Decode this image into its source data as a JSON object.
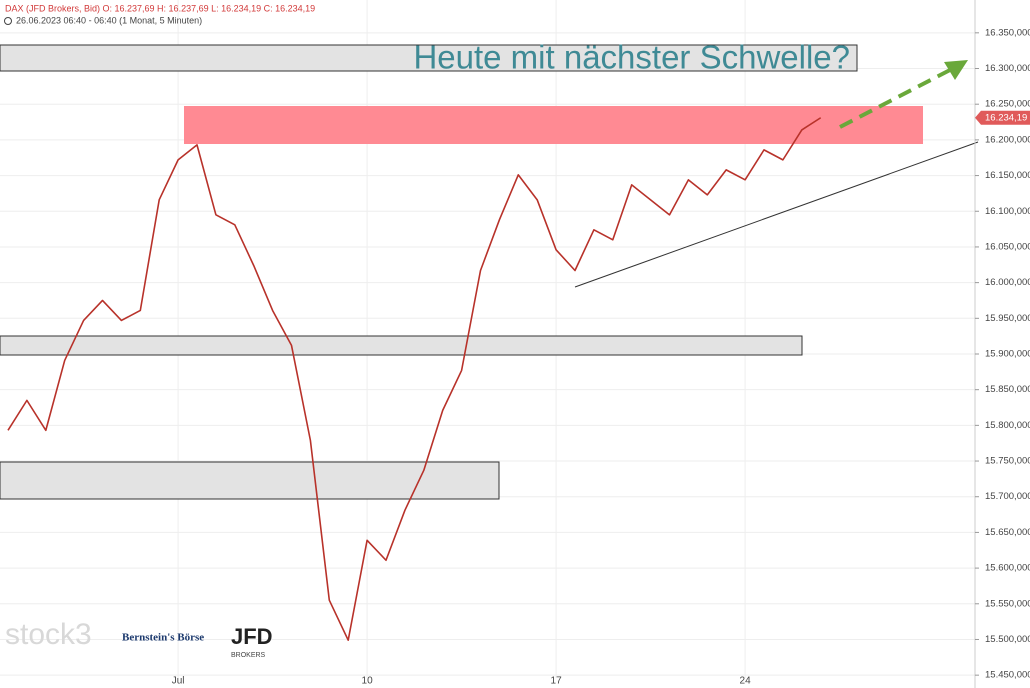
{
  "chart_data": {
    "type": "line",
    "title": "DAX (JFD Brokers, Bid)  O: 16.237,69  H: 16.237,69  L: 16.234,19  C: 16.234,19",
    "subtitle": "26.06.2023 06:40 - 06:40   (1 Monat, 5 Minuten)",
    "annotation": "Heute mit nächster Schwelle?",
    "last_price_label": "16.234,19",
    "logos": [
      "stock3",
      "Bernstein's Börse",
      "JFD",
      "BROKERS"
    ],
    "categories": [
      null,
      null,
      null,
      null,
      null,
      null,
      null,
      null,
      null,
      "Jul",
      null,
      null,
      null,
      null,
      null,
      null,
      null,
      null,
      null,
      "10",
      null,
      null,
      null,
      null,
      null,
      null,
      null,
      null,
      null,
      "17",
      null,
      null,
      null,
      null,
      null,
      null,
      null,
      null,
      null,
      "24",
      null,
      null,
      null,
      null
    ],
    "series": [
      {
        "name": "DAX",
        "color": "#b8322a",
        "values": [
          15793,
          15835,
          15793,
          15891,
          15947,
          15975,
          15947,
          15961,
          16116,
          16172,
          16193,
          16095,
          16081,
          16024,
          15961,
          15912,
          15779,
          15555,
          15499,
          15639,
          15611,
          15681,
          15737,
          15821,
          15877,
          16017,
          16088,
          16151,
          16116,
          16046,
          16017,
          16074,
          16060,
          16137,
          16116,
          16095,
          16144,
          16123,
          16158,
          16144,
          16186,
          16172,
          16214,
          16231
        ]
      }
    ],
    "ylim": [
      15432,
      16396
    ],
    "yticks": [
      {
        "value": 16350,
        "label": "16.350,000"
      },
      {
        "value": 16300,
        "label": "16.300,000"
      },
      {
        "value": 16250,
        "label": "16.250,000"
      },
      {
        "value": 16200,
        "label": "16.200,000"
      },
      {
        "value": 16150,
        "label": "16.150,000"
      },
      {
        "value": 16100,
        "label": "16.100,000"
      },
      {
        "value": 16050,
        "label": "16.050,000"
      },
      {
        "value": 16000,
        "label": "16.000,000"
      },
      {
        "value": 15950,
        "label": "15.950,000"
      },
      {
        "value": 15900,
        "label": "15.900,000"
      },
      {
        "value": 15850,
        "label": "15.850,000"
      },
      {
        "value": 15800,
        "label": "15.800,000"
      },
      {
        "value": 15750,
        "label": "15.750,000"
      },
      {
        "value": 15700,
        "label": "15.700,000"
      },
      {
        "value": 15650,
        "label": "15.650,000"
      },
      {
        "value": 15600,
        "label": "15.600,000"
      },
      {
        "value": 15550,
        "label": "15.550,000"
      },
      {
        "value": 15500,
        "label": "15.500,000"
      },
      {
        "value": 15450,
        "label": "15.450,000"
      }
    ],
    "grid": true
  }
}
